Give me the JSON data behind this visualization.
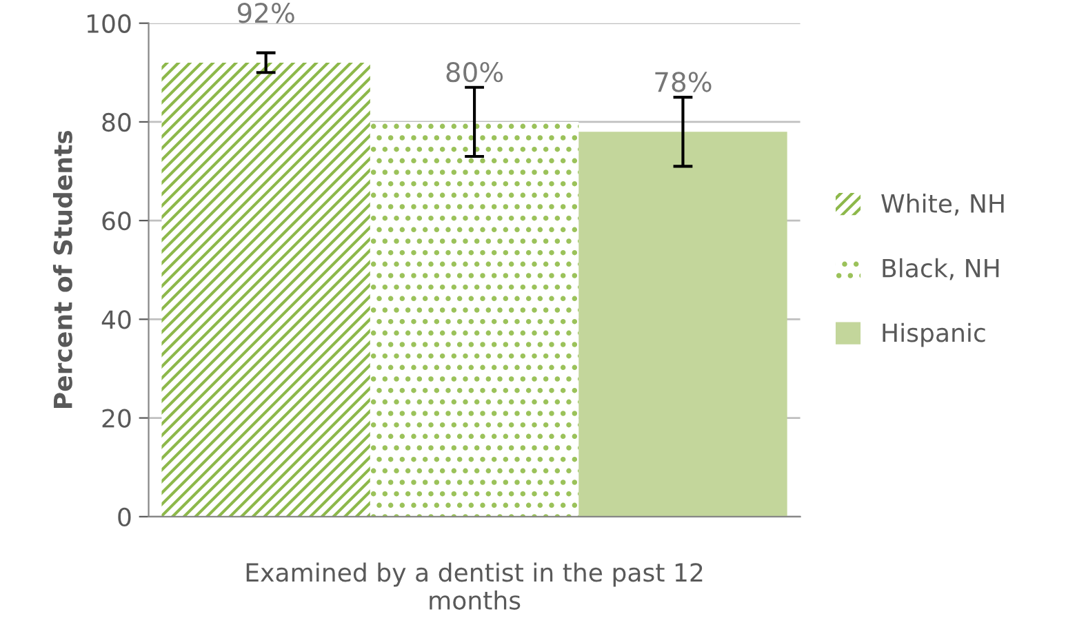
{
  "chart_data": {
    "type": "bar",
    "ylabel": "Percent of Students",
    "categories": [
      "Examined by a dentist in the past 12 months"
    ],
    "series": [
      {
        "name": "White, NH",
        "color": "#8db84a",
        "values": [
          92
        ],
        "errors": [
          [
            90,
            94
          ]
        ],
        "value_labels": [
          "92%"
        ]
      },
      {
        "name": "Black, NH",
        "color": "#9bc25a",
        "values": [
          80
        ],
        "errors": [
          [
            73,
            87
          ]
        ],
        "value_labels": [
          "80%"
        ]
      },
      {
        "name": "Hispanic",
        "color": "#c3d69b",
        "values": [
          78
        ],
        "errors": [
          [
            71,
            85
          ]
        ],
        "value_labels": [
          "78%"
        ]
      }
    ],
    "ylim": [
      0,
      100
    ],
    "yticks": [
      0,
      20,
      40,
      60,
      80,
      100
    ],
    "grid": "y",
    "legend": "right"
  }
}
